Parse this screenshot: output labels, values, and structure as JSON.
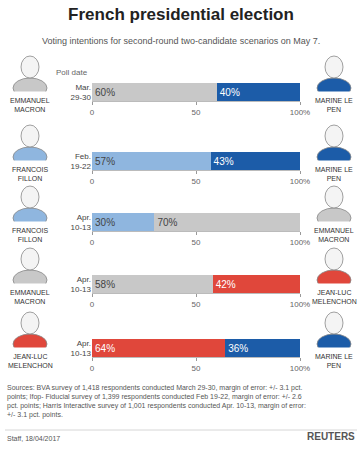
{
  "header": {
    "title": "French presidential election",
    "subtitle": "Voting intentions for second-round two-candidate scenarios on May 7.",
    "poll_date_label": "Poll date"
  },
  "chart_data": [
    {
      "type": "bar",
      "orientation": "horizontal",
      "stacked": true,
      "data_labels": true,
      "categories": [
        "Mar. 29-30"
      ],
      "series": [
        {
          "name": "EMMANUEL MACRON",
          "color": "#c8c8c8",
          "values": [
            60
          ],
          "value_labels": [
            "60%"
          ]
        },
        {
          "name": "MARINE LE PEN",
          "color": "#1c5ca8",
          "values": [
            40
          ],
          "value_labels": [
            "40%"
          ]
        }
      ],
      "xlim": [
        0,
        100
      ],
      "xticks": [
        0,
        50,
        {
          "value": 100,
          "label": "100%"
        }
      ]
    },
    {
      "type": "bar",
      "orientation": "horizontal",
      "stacked": true,
      "data_labels": true,
      "categories": [
        "Feb. 19-22"
      ],
      "series": [
        {
          "name": "FRANCOIS FILLON",
          "color": "#8fb6df",
          "values": [
            57
          ],
          "value_labels": [
            "57%"
          ]
        },
        {
          "name": "MARINE LE PEN",
          "color": "#1c5ca8",
          "values": [
            43
          ],
          "value_labels": [
            "43%"
          ]
        }
      ],
      "xlim": [
        0,
        100
      ],
      "xticks": [
        0,
        50,
        {
          "value": 100,
          "label": "100%"
        }
      ]
    },
    {
      "type": "bar",
      "orientation": "horizontal",
      "stacked": true,
      "data_labels": true,
      "categories": [
        "Apr. 10-13"
      ],
      "series": [
        {
          "name": "FRANCOIS FILLON",
          "color": "#8fb6df",
          "values": [
            30
          ],
          "value_labels": [
            "30%"
          ]
        },
        {
          "name": "EMMANUEL MACRON",
          "color": "#c8c8c8",
          "values": [
            70
          ],
          "value_labels": [
            "70%"
          ]
        }
      ],
      "xlim": [
        0,
        100
      ],
      "xticks": [
        0,
        50,
        {
          "value": 100,
          "label": "100%"
        }
      ]
    },
    {
      "type": "bar",
      "orientation": "horizontal",
      "stacked": true,
      "data_labels": true,
      "categories": [
        "Apr. 10-13"
      ],
      "series": [
        {
          "name": "EMMANUEL MACRON",
          "color": "#c8c8c8",
          "values": [
            58
          ],
          "value_labels": [
            "58%"
          ]
        },
        {
          "name": "JEAN-LUC MELENCHON",
          "color": "#e0473b",
          "values": [
            42
          ],
          "value_labels": [
            "42%"
          ]
        }
      ],
      "xlim": [
        0,
        100
      ],
      "xticks": [
        0,
        50,
        {
          "value": 100,
          "label": "100%"
        }
      ]
    },
    {
      "type": "bar",
      "orientation": "horizontal",
      "stacked": true,
      "data_labels": true,
      "categories": [
        "Apr. 10-13"
      ],
      "series": [
        {
          "name": "JEAN-LUC MELENCHON",
          "color": "#e0473b",
          "values": [
            64
          ],
          "value_labels": [
            "64%"
          ]
        },
        {
          "name": "MARINE LE PEN",
          "color": "#1c5ca8",
          "values": [
            36
          ],
          "value_labels": [
            "36%"
          ]
        }
      ],
      "xlim": [
        0,
        100
      ],
      "xticks": [
        0,
        50,
        {
          "value": 100,
          "label": "100%"
        }
      ]
    }
  ],
  "footer": {
    "sources": [
      "Sources: BVA survey of 1,418 respondents conducted March 29-30, margin of error: +/- 3.1 pct.",
      "points; Ifop- Fiducial survey of 1,399 respondents conducted Feb 19-22, margin of error: +/- 2.6",
      "pct. points; Harris Interactive survey of 1,001 respondents conducted Apr. 10-13, margin of error:",
      "+/- 3.1 pct. points."
    ],
    "credit": "Staff, 18/04/2017",
    "logo": "REUTERS"
  }
}
